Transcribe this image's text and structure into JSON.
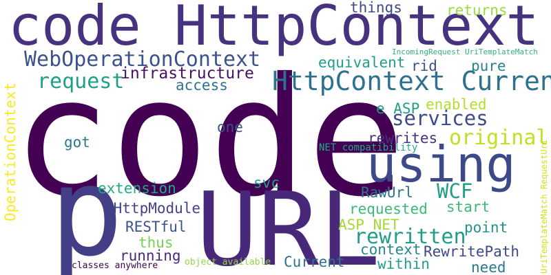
{
  "words": [
    {
      "text": "code HttpContext",
      "color": "#46327e"
    },
    {
      "text": "code",
      "color": "#440154"
    },
    {
      "text": "p",
      "color": "#433e85"
    },
    {
      "text": "URL",
      "color": "#482979"
    },
    {
      "text": "using",
      "color": "#3e4989"
    },
    {
      "text": "HttpContext Current",
      "color": "#2c728e"
    },
    {
      "text": "WebOperationContext",
      "color": "#3b528b"
    },
    {
      "text": "request",
      "color": "#1fa088"
    },
    {
      "text": "infrastructure",
      "color": "#471063"
    },
    {
      "text": "access",
      "color": "#2c728e"
    },
    {
      "text": "things",
      "color": "#3e4989"
    },
    {
      "text": "returns",
      "color": "#9bd93c"
    },
    {
      "text": "IncomingRequest UriTemplateMatch",
      "color": "#2db27d"
    },
    {
      "text": "equivalent",
      "color": "#1f9e89"
    },
    {
      "text": "rid",
      "color": "#3b528b"
    },
    {
      "text": "pure",
      "color": "#26828e"
    },
    {
      "text": "e ASP",
      "color": "#1f9e89"
    },
    {
      "text": "enabled",
      "color": "#b5de2b"
    },
    {
      "text": "services",
      "color": "#3e4989"
    },
    {
      "text": "original",
      "color": "#c2df23"
    },
    {
      "text": "rewrites",
      "color": "#46327e"
    },
    {
      "text": "one",
      "color": "#3b528b"
    },
    {
      "text": "got",
      "color": "#2a788e"
    },
    {
      "text": "NET compatibility",
      "color": "#22a884"
    },
    {
      "text": "UriTemplateMatch RequestUri",
      "color": "#d0e11c"
    },
    {
      "text": "OperationContext",
      "color": "#fde725"
    },
    {
      "text": "svc",
      "color": "#1f9e89"
    },
    {
      "text": "extension",
      "color": "#22a884"
    },
    {
      "text": "RawUrl",
      "color": "#2c728e"
    },
    {
      "text": "WCF",
      "color": "#1f9e89"
    },
    {
      "text": "start",
      "color": "#3aba76"
    },
    {
      "text": "IHttpModule",
      "color": "#414487"
    },
    {
      "text": "requested",
      "color": "#3aba76"
    },
    {
      "text": "RESTful",
      "color": "#3b528b"
    },
    {
      "text": "ASP NET",
      "color": "#a2da37"
    },
    {
      "text": "point",
      "color": "#20928c"
    },
    {
      "text": "rewritten",
      "color": "#1f9e89"
    },
    {
      "text": "thus",
      "color": "#75d054"
    },
    {
      "text": "context",
      "color": "#24868e"
    },
    {
      "text": "RewritePath",
      "color": "#3e4989"
    },
    {
      "text": "running",
      "color": "#482979"
    },
    {
      "text": "within",
      "color": "#1f9e89"
    },
    {
      "text": "need",
      "color": "#2a788e"
    },
    {
      "text": "Current",
      "color": "#2c728e"
    },
    {
      "text": "object available",
      "color": "#90d743"
    },
    {
      "text": "classes anywhere",
      "color": "#440154"
    }
  ]
}
